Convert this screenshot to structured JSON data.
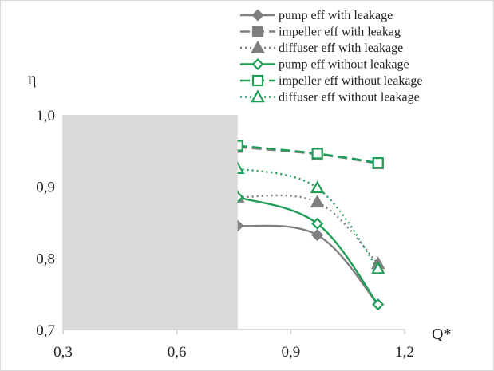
{
  "chart_data": {
    "type": "line",
    "title": "",
    "xlabel": "Q*",
    "ylabel": "η",
    "xlim": [
      0.3,
      1.2
    ],
    "ylim": [
      0.7,
      1.0
    ],
    "x_ticks": [
      "0,3",
      "0,6",
      "0,9",
      "1,2"
    ],
    "y_ticks": [
      "0,7",
      "0,8",
      "0,9",
      "1,0"
    ],
    "grid": false,
    "legend_position": "top-right",
    "occluded_region": {
      "x": [
        0.3,
        0.76
      ],
      "y": [
        0.7,
        1.0
      ],
      "color": "#d9d9d9"
    },
    "series": [
      {
        "name": "pump eff with leakage",
        "color": "#7f7f7f",
        "dash": "solid",
        "marker": "diamond",
        "x": [
          0.76,
          0.97,
          1.13
        ],
        "y": [
          0.845,
          0.832,
          0.735
        ]
      },
      {
        "name": "impeller eff with leakag",
        "color": "#7f7f7f",
        "dash": "dashed",
        "marker": "square",
        "x": [
          0.76,
          0.97,
          1.13
        ],
        "y": [
          0.955,
          0.945,
          0.932
        ]
      },
      {
        "name": "diffuser eff with leakage",
        "color": "#7f7f7f",
        "dash": "dotted",
        "marker": "triangle",
        "x": [
          0.76,
          0.97,
          1.13
        ],
        "y": [
          0.885,
          0.878,
          0.792
        ]
      },
      {
        "name": "pump eff without  leakage",
        "color": "#1e9e57",
        "dash": "solid",
        "marker": "diamond-open",
        "x": [
          0.76,
          0.97,
          1.13
        ],
        "y": [
          0.885,
          0.848,
          0.735
        ]
      },
      {
        "name": "impeller eff without leakage",
        "color": "#1e9e57",
        "dash": "dashed",
        "marker": "square-open",
        "x": [
          0.76,
          0.97,
          1.13
        ],
        "y": [
          0.957,
          0.946,
          0.933
        ]
      },
      {
        "name": "diffuser eff without leakage",
        "color": "#1e9e57",
        "dash": "dotted",
        "marker": "triangle-open",
        "x": [
          0.76,
          0.97,
          1.13
        ],
        "y": [
          0.925,
          0.898,
          0.785
        ]
      }
    ]
  }
}
